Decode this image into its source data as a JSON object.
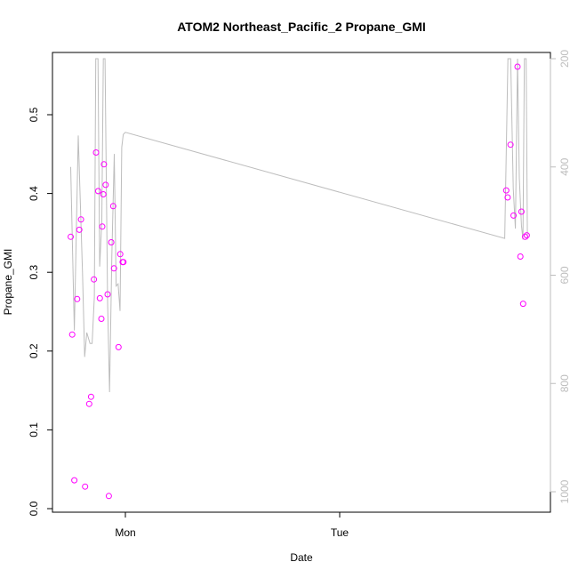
{
  "chart_data": {
    "type": "scatter",
    "title": "ATOM2 Northeast_Pacific_2 Propane_GMI",
    "xlabel": "Date",
    "ylabel": "Propane_GMI",
    "ylim": [
      0,
      0.58
    ],
    "xlim": [
      -0.28,
      1.95
    ],
    "x_unit": "days from Monday 00:00",
    "x_ticks": [
      {
        "value": 0,
        "label": "Mon"
      },
      {
        "value": 1,
        "label": "Tue"
      }
    ],
    "y_ticks": [
      0.0,
      0.1,
      0.2,
      0.3,
      0.4,
      0.5
    ],
    "y_tick_labels": [
      "0.0",
      "0.1",
      "0.2",
      "0.3",
      "0.4",
      "0.5"
    ],
    "right_axis": {
      "reversed": true,
      "range_at_top": 200,
      "range_at_bottom": 1040,
      "ticks": [
        200,
        400,
        600,
        800,
        1000
      ],
      "color": "#bdbdbd"
    },
    "series": [
      {
        "kind": "points",
        "color": "#ff00ff",
        "marker": "open-circle",
        "x": [
          -0.255,
          -0.248,
          -0.238,
          -0.225,
          -0.215,
          -0.207,
          -0.188,
          -0.169,
          -0.16,
          -0.147,
          -0.137,
          -0.127,
          -0.119,
          -0.112,
          -0.108,
          -0.103,
          -0.1,
          -0.092,
          -0.083,
          -0.077,
          -0.066,
          -0.057,
          -0.053,
          -0.032,
          -0.024,
          -0.013,
          -0.009,
          1.777,
          1.784,
          1.797,
          1.811,
          1.83,
          1.843,
          1.848,
          1.856,
          1.865,
          1.873
        ],
        "y": [
          0.345,
          0.221,
          0.036,
          0.266,
          0.354,
          0.367,
          0.028,
          0.133,
          0.142,
          0.291,
          0.452,
          0.403,
          0.267,
          0.241,
          0.358,
          0.399,
          0.437,
          0.411,
          0.272,
          0.016,
          0.338,
          0.384,
          0.305,
          0.205,
          0.323,
          0.313,
          0.313,
          0.404,
          0.395,
          0.462,
          0.372,
          0.561,
          0.32,
          0.377,
          0.26,
          0.345,
          0.347
        ]
      },
      {
        "kind": "line",
        "color": "#bdbdbd",
        "axis": "right",
        "x": [
          -0.255,
          -0.238,
          -0.22,
          -0.2,
          -0.19,
          -0.18,
          -0.165,
          -0.155,
          -0.145,
          -0.138,
          -0.128,
          -0.12,
          -0.11,
          -0.103,
          -0.095,
          -0.083,
          -0.074,
          -0.063,
          -0.052,
          -0.043,
          -0.034,
          -0.025,
          -0.017,
          -0.01,
          -0.005,
          0.0,
          1.77,
          1.785,
          1.798,
          1.81,
          1.82,
          1.83,
          1.838,
          1.848,
          1.855,
          1.862,
          1.87,
          1.876
        ],
        "y": [
          400,
          702,
          342,
          596,
          751,
          706,
          726,
          726,
          640,
          200,
          200,
          584,
          500,
          200,
          200,
          650,
          816,
          562,
          376,
          620,
          616,
          666,
          364,
          340,
          338,
          336,
          532,
          200,
          200,
          440,
          514,
          200,
          420,
          508,
          534,
          200,
          200,
          534
        ]
      }
    ]
  }
}
